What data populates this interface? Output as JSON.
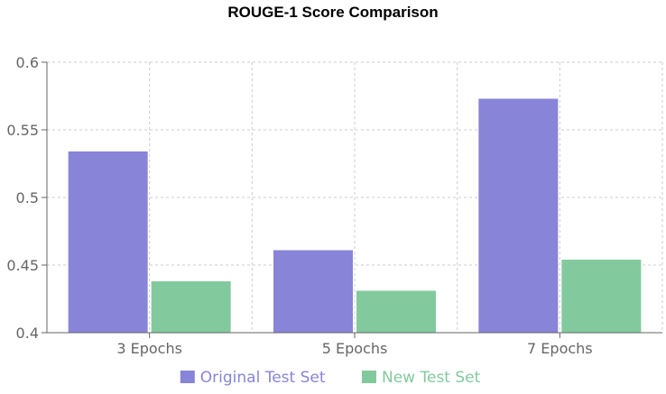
{
  "chart_data": {
    "type": "bar",
    "title": "ROUGE-1 Score Comparison",
    "xlabel": "",
    "ylabel": "",
    "categories": [
      "3 Epochs",
      "5 Epochs",
      "7 Epochs"
    ],
    "series": [
      {
        "name": "Original Test Set",
        "values": [
          0.534,
          0.461,
          0.573
        ],
        "color": "#8884d8"
      },
      {
        "name": "New Test Set",
        "values": [
          0.438,
          0.431,
          0.454
        ],
        "color": "#82ca9d"
      }
    ],
    "ylim": [
      0.4,
      0.6
    ],
    "yticks": [
      "0.4",
      "0.45",
      "0.5",
      "0.55",
      "0.6"
    ],
    "grid": true,
    "legend_position": "bottom"
  }
}
